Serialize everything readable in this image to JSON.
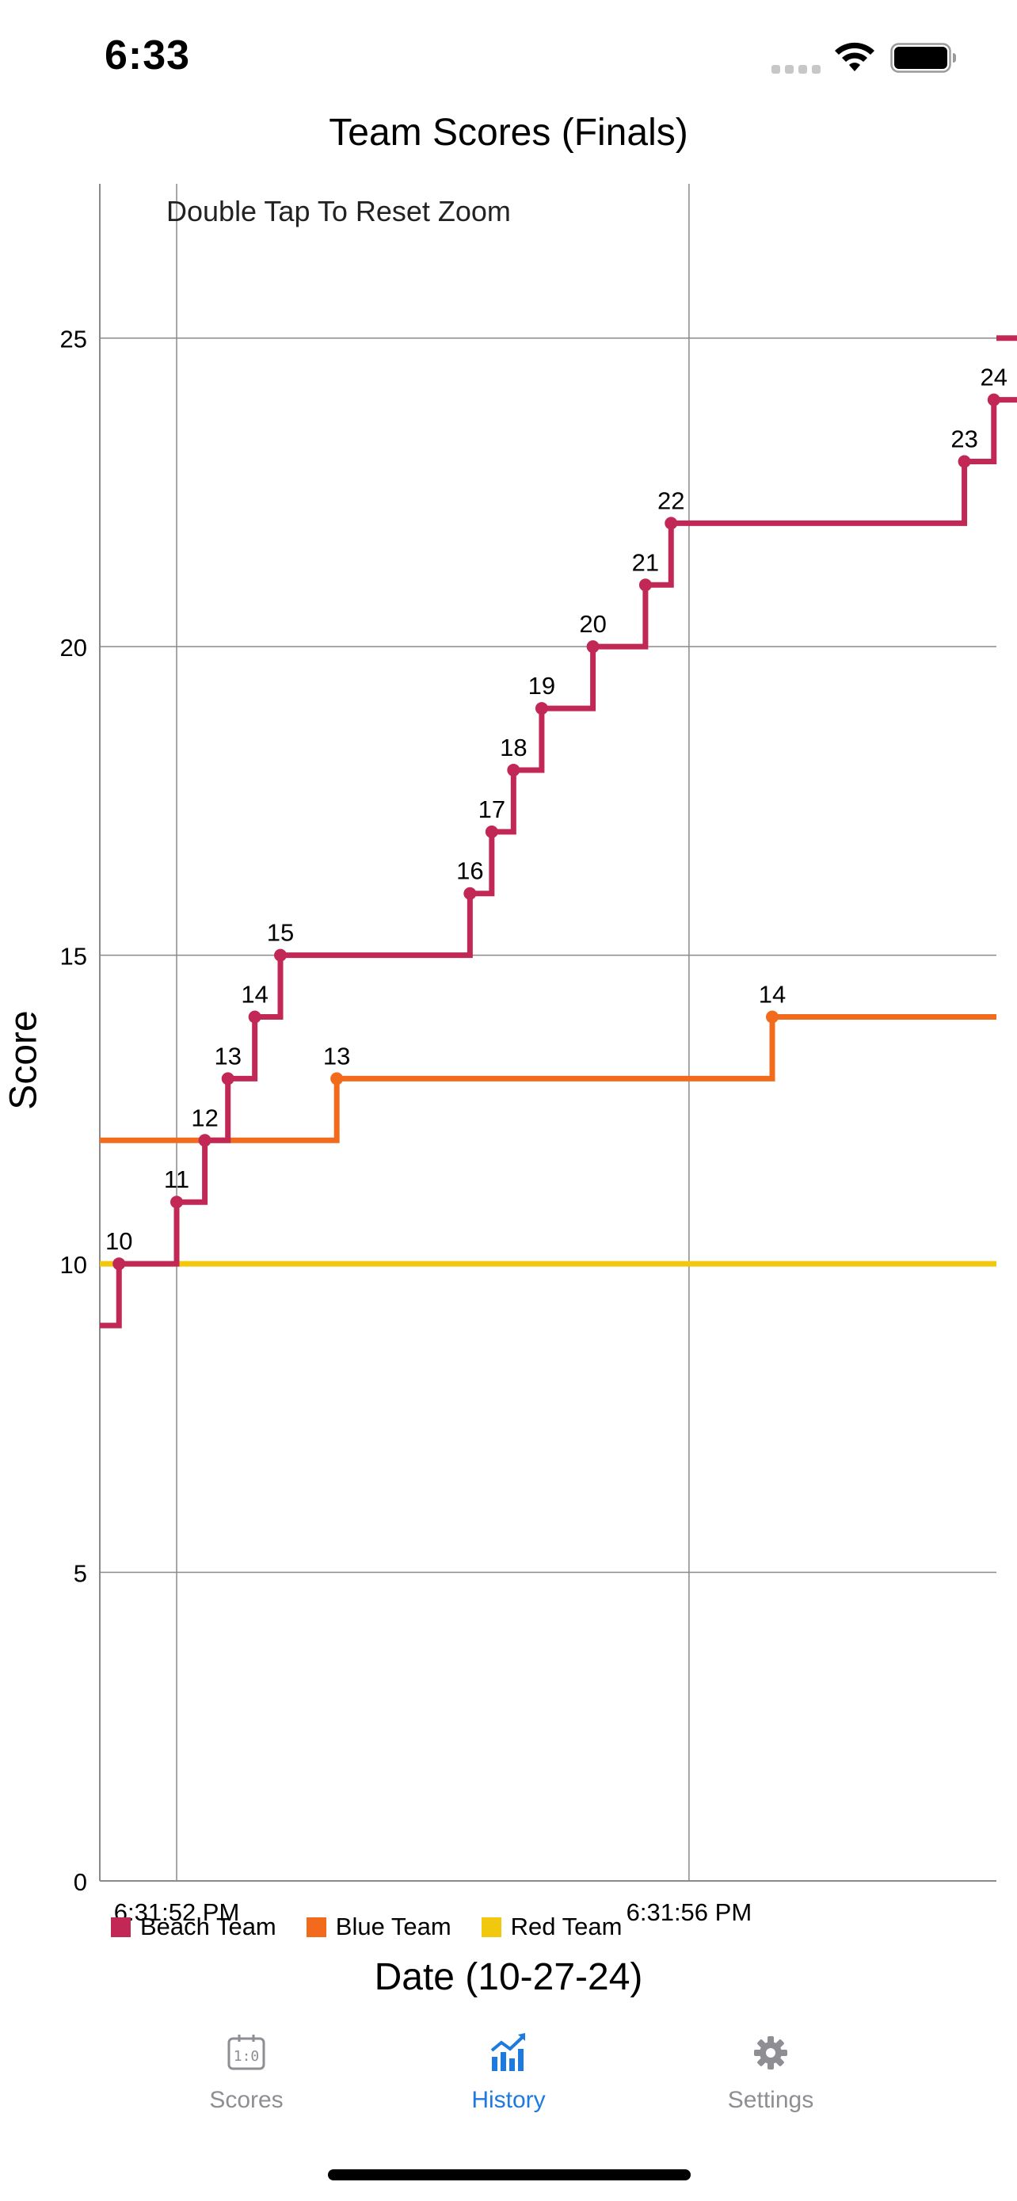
{
  "status_bar": {
    "time": "6:33"
  },
  "chart_data": {
    "type": "line",
    "step": true,
    "title": "Team Scores (Finals)",
    "hint": "Double Tap To Reset Zoom",
    "xlabel": "Date (10-27-24)",
    "ylabel": "Score",
    "ylim": [
      0,
      27.5
    ],
    "yticks": [
      0,
      5,
      10,
      15,
      20,
      25
    ],
    "xlim_seconds": [
      51.0,
      58.0
    ],
    "xticks": [
      {
        "label": "6:31:52 PM",
        "t": 51.6
      },
      {
        "label": "6:31:56 PM",
        "t": 55.6
      }
    ],
    "x_unit": "seconds after 6:31 PM",
    "grid": true,
    "legend_position": "bottom-left",
    "series": [
      {
        "name": "Beach Team",
        "color": "#c22855",
        "start_value": 9,
        "points": [
          {
            "t": 51.15,
            "v": 10
          },
          {
            "t": 51.6,
            "v": 11
          },
          {
            "t": 51.82,
            "v": 12
          },
          {
            "t": 52.0,
            "v": 13
          },
          {
            "t": 52.21,
            "v": 14
          },
          {
            "t": 52.41,
            "v": 15
          },
          {
            "t": 53.89,
            "v": 16
          },
          {
            "t": 54.06,
            "v": 17
          },
          {
            "t": 54.23,
            "v": 18
          },
          {
            "t": 54.45,
            "v": 19
          },
          {
            "t": 54.85,
            "v": 20
          },
          {
            "t": 55.26,
            "v": 21
          },
          {
            "t": 55.46,
            "v": 22
          },
          {
            "t": 57.75,
            "v": 23
          },
          {
            "t": 57.98,
            "v": 24
          },
          {
            "t": 58.4,
            "v": 25
          }
        ]
      },
      {
        "name": "Blue Team",
        "color": "#f26b1d",
        "start_value": 12,
        "points": [
          {
            "t": 52.85,
            "v": 13
          },
          {
            "t": 56.25,
            "v": 14
          }
        ]
      },
      {
        "name": "Red Team",
        "color": "#f2c80f",
        "start_value": 10,
        "points": []
      }
    ]
  },
  "tabs": [
    {
      "label": "Scores",
      "icon": "scoreboard-icon",
      "active": false
    },
    {
      "label": "History",
      "icon": "chart-icon",
      "active": true
    },
    {
      "label": "Settings",
      "icon": "gear-icon",
      "active": false
    }
  ],
  "colors": {
    "accent": "#1f7ae0",
    "inactive": "#8e8e93",
    "grid": "#8a8a8a"
  }
}
